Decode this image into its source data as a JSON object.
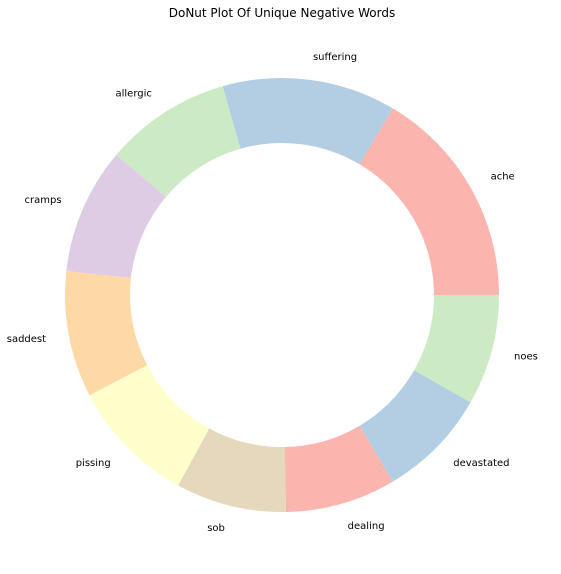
{
  "chart_data": {
    "type": "pie",
    "variant": "donut",
    "title": "DoNut Plot Of Unique Negative Words",
    "labels": [
      "ache",
      "suffering",
      "allergic",
      "cramps",
      "saddest",
      "pissing",
      "sob",
      "dealing",
      "devastated",
      "noes"
    ],
    "values": [
      14,
      11,
      8,
      8,
      8,
      8,
      7,
      7,
      7,
      7
    ],
    "colors": [
      "#fbb4ae",
      "#b3cde3",
      "#ccebc5",
      "#decbe4",
      "#fed9a6",
      "#ffffcc",
      "#e5d8bd",
      "#fbb4ae",
      "#b3cde3",
      "#ccebc5"
    ],
    "start_angle_deg": 0,
    "direction": "counterclockwise",
    "legend": "none",
    "grid": false
  }
}
